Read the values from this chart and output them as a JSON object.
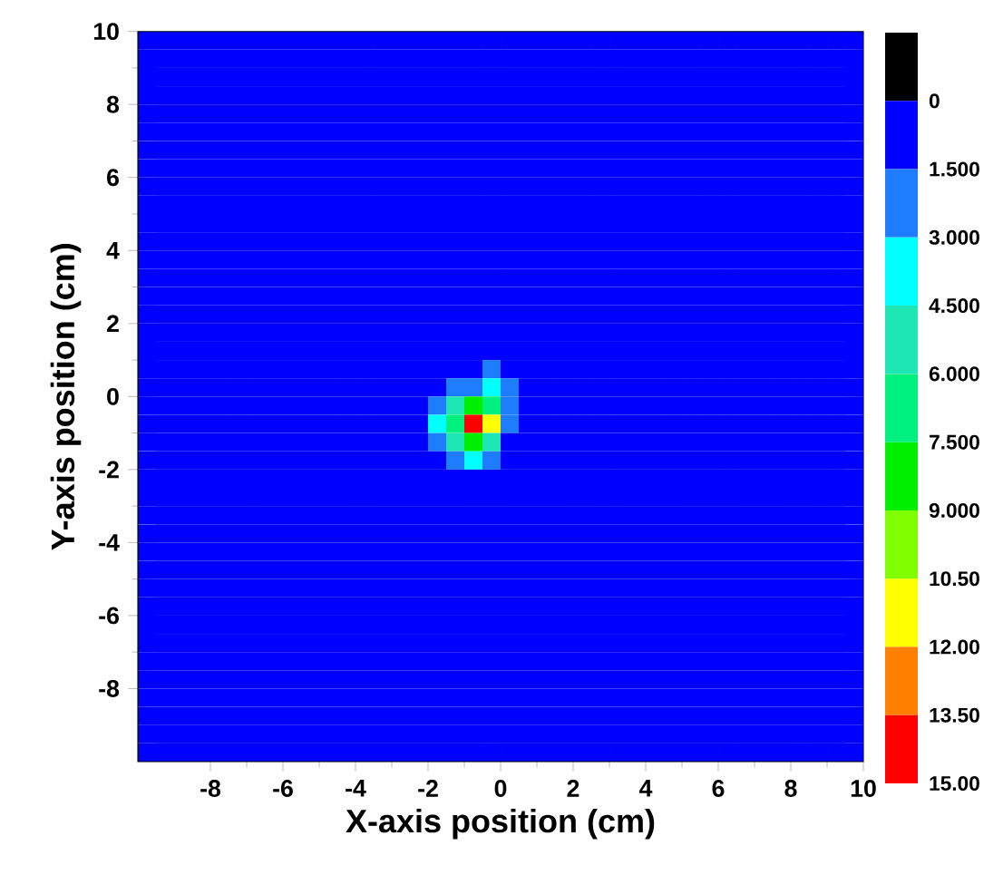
{
  "chart_data": {
    "type": "heatmap",
    "xlabel": "X-axis position (cm)",
    "ylabel": "Y-axis position (cm)",
    "xlim": [
      -10,
      10
    ],
    "ylim": [
      -10,
      10
    ],
    "xticks": [
      -8,
      -6,
      -4,
      -2,
      0,
      2,
      4,
      6,
      8,
      10
    ],
    "yticks": [
      -8,
      -6,
      -4,
      -2,
      0,
      2,
      4,
      6,
      8,
      10
    ],
    "clim": [
      15,
      -1.5
    ],
    "cticks": [
      {
        "value": 0,
        "label": "0"
      },
      {
        "value": 1.5,
        "label": "1.500"
      },
      {
        "value": 3,
        "label": "3.000"
      },
      {
        "value": 4.5,
        "label": "4.500"
      },
      {
        "value": 6,
        "label": "6.000"
      },
      {
        "value": 7.5,
        "label": "7.500"
      },
      {
        "value": 9,
        "label": "9.000"
      },
      {
        "value": 10.5,
        "label": "10.50"
      },
      {
        "value": 12,
        "label": "12.00"
      },
      {
        "value": 13.5,
        "label": "13.50"
      },
      {
        "value": 15,
        "label": "15.00"
      }
    ],
    "colors": [
      "#000000",
      "#0000ff",
      "#1e7cff",
      "#00ffff",
      "#1ee6b4",
      "#00f080",
      "#00f000",
      "#80ff00",
      "#ffff00",
      "#ff8000",
      "#ff0000"
    ],
    "grid": false,
    "cells": [
      [
        0,
        0,
        0,
        0,
        0,
        0,
        0,
        0,
        0,
        0,
        0,
        0,
        0,
        0,
        0,
        0,
        0,
        0,
        0,
        0,
        0,
        0,
        0,
        0,
        0,
        0,
        0,
        0,
        0,
        0,
        0,
        0,
        0,
        0,
        0,
        0,
        0,
        0,
        0,
        0
      ],
      [
        0,
        0,
        0,
        0,
        0,
        0,
        0,
        0,
        0,
        0,
        0,
        0,
        0,
        0,
        0,
        0,
        0,
        0,
        0,
        0,
        0,
        0,
        0,
        0,
        0,
        0,
        0,
        0,
        0,
        0,
        0,
        0,
        0,
        0,
        0,
        0,
        0,
        0,
        0,
        0
      ],
      [
        0,
        0,
        0,
        0,
        0,
        0,
        0,
        0,
        0,
        0,
        0,
        0,
        0,
        0,
        0,
        0,
        0,
        0,
        0,
        0,
        0,
        0,
        0,
        0,
        0,
        0,
        0,
        0,
        0,
        0,
        0,
        0,
        0,
        0,
        0,
        0,
        0,
        0,
        0,
        0
      ],
      [
        0,
        0,
        0,
        0,
        0,
        0,
        0,
        0,
        0,
        0,
        0,
        0,
        0,
        0,
        0,
        0,
        0,
        0,
        0,
        0,
        0,
        0,
        0,
        0,
        0,
        0,
        0,
        0,
        0,
        0,
        0,
        0,
        0,
        0,
        0,
        0,
        0,
        0,
        0,
        0
      ],
      [
        0,
        0,
        0,
        0,
        0,
        0,
        0,
        0,
        0,
        0,
        0,
        0,
        0,
        0,
        0,
        0,
        0,
        0,
        0,
        0,
        0,
        0,
        0,
        0,
        0,
        0,
        0,
        0,
        0,
        0,
        0,
        0,
        0,
        0,
        0,
        0,
        0,
        0,
        0,
        0
      ],
      [
        0,
        0,
        0,
        0,
        0,
        0,
        0,
        0,
        0,
        0,
        0,
        0,
        0,
        0,
        0,
        0,
        0,
        0,
        0,
        0,
        0,
        0,
        0,
        0,
        0,
        0,
        0,
        0,
        0,
        0,
        0,
        0,
        0,
        0,
        0,
        0,
        0,
        0,
        0,
        0
      ],
      [
        0,
        0,
        0,
        0,
        0,
        0,
        0,
        0,
        0,
        0,
        0,
        0,
        0,
        0,
        0,
        0,
        0,
        0,
        0,
        0,
        0,
        0,
        0,
        0,
        0,
        0,
        0,
        0,
        0,
        0,
        0,
        0,
        0,
        0,
        0,
        0,
        0,
        0,
        0,
        0
      ],
      [
        0,
        0,
        0,
        0,
        0,
        0,
        0,
        0,
        0,
        0,
        0,
        0,
        0,
        0,
        0,
        0,
        0,
        0,
        0,
        0,
        0,
        0,
        0,
        0,
        0,
        0,
        0,
        0,
        0,
        0,
        0,
        0,
        0,
        0,
        0,
        0,
        0,
        0,
        0,
        0
      ],
      [
        0,
        0,
        0,
        0,
        0,
        0,
        0,
        0,
        0,
        0,
        0,
        0,
        0,
        0,
        0,
        0,
        0,
        0,
        0,
        0,
        0,
        0,
        0,
        0,
        0,
        0,
        0,
        0,
        0,
        0,
        0,
        0,
        0,
        0,
        0,
        0,
        0,
        0,
        0,
        0
      ],
      [
        0,
        0,
        0,
        0,
        0,
        0,
        0,
        0,
        0,
        0,
        0,
        0,
        0,
        0,
        0,
        0,
        0,
        0,
        0,
        0,
        0,
        0,
        0,
        0,
        0,
        0,
        0,
        0,
        0,
        0,
        0,
        0,
        0,
        0,
        0,
        0,
        0,
        0,
        0,
        0
      ],
      [
        0,
        0,
        0,
        0,
        0,
        0,
        0,
        0,
        0,
        0,
        0,
        0,
        0,
        0,
        0,
        0,
        0,
        0,
        0,
        0,
        0,
        0,
        0,
        0,
        0,
        0,
        0,
        0,
        0,
        0,
        0,
        0,
        0,
        0,
        0,
        0,
        0,
        0,
        0,
        0
      ],
      [
        0,
        0,
        0,
        0,
        0,
        0,
        0,
        0,
        0,
        0,
        0,
        0,
        0,
        0,
        0,
        0,
        0,
        0,
        0,
        0,
        0,
        0,
        0,
        0,
        0,
        0,
        0,
        0,
        0,
        0,
        0,
        0,
        0,
        0,
        0,
        0,
        0,
        0,
        0,
        0
      ],
      [
        0,
        0,
        0,
        0,
        0,
        0,
        0,
        0,
        0,
        0,
        0,
        0,
        0,
        0,
        0,
        0,
        0,
        0,
        0,
        0,
        0,
        0,
        0,
        0,
        0,
        0,
        0,
        0,
        0,
        0,
        0,
        0,
        0,
        0,
        0,
        0,
        0,
        0,
        0,
        0
      ],
      [
        0,
        0,
        0,
        0,
        0,
        0,
        0,
        0,
        0,
        0,
        0,
        0,
        0,
        0,
        0,
        0,
        0,
        0,
        0,
        0,
        0,
        0,
        0,
        0,
        0,
        0,
        0,
        0,
        0,
        0,
        0,
        0,
        0,
        0,
        0,
        0,
        0,
        0,
        0,
        0
      ],
      [
        0,
        0,
        0,
        0,
        0,
        0,
        0,
        0,
        0,
        0,
        0,
        0,
        0,
        0,
        0,
        0,
        0,
        0,
        0,
        0,
        0,
        0,
        0,
        0,
        0,
        0,
        0,
        0,
        0,
        0,
        0,
        0,
        0,
        0,
        0,
        0,
        0,
        0,
        0,
        0
      ],
      [
        0,
        0,
        0,
        0,
        0,
        0,
        0,
        0,
        0,
        0,
        0,
        0,
        0,
        0,
        0,
        0,
        0,
        0,
        0,
        0,
        0,
        0,
        0,
        0,
        0,
        0,
        0,
        0,
        0,
        0,
        0,
        0,
        0,
        0,
        0,
        0,
        0,
        0,
        0,
        0
      ],
      [
        0,
        0,
        0,
        0,
        0,
        0,
        0,
        0,
        0,
        0,
        0,
        0,
        0,
        0,
        0,
        0,
        0,
        0,
        0,
        0,
        0,
        0,
        0,
        0,
        0,
        0,
        0,
        0,
        0,
        0,
        0,
        0,
        0,
        0,
        0,
        0,
        0,
        0,
        0,
        0
      ],
      [
        0,
        0,
        0,
        0,
        0,
        0,
        0,
        0,
        0,
        0,
        0,
        0,
        0,
        0,
        0,
        0,
        0,
        0,
        0,
        0,
        0,
        0,
        0,
        0,
        0,
        0,
        0,
        0,
        0,
        0,
        0,
        0,
        0,
        0,
        0,
        0,
        0,
        0,
        0,
        0
      ],
      [
        0,
        0,
        0,
        0,
        0,
        0,
        0,
        0,
        0,
        0,
        0,
        0,
        0,
        0,
        0,
        0,
        0,
        0,
        0,
        2,
        0,
        0,
        0,
        0,
        0,
        0,
        0,
        0,
        0,
        0,
        0,
        0,
        0,
        0,
        0,
        0,
        0,
        0,
        0,
        0
      ],
      [
        0,
        0,
        0,
        0,
        0,
        0,
        0,
        0,
        0,
        0,
        0,
        0,
        0,
        0,
        0,
        0,
        0,
        2,
        2,
        3,
        2,
        0,
        0,
        0,
        0,
        0,
        0,
        0,
        0,
        0,
        0,
        0,
        0,
        0,
        0,
        0,
        0,
        0,
        0,
        0
      ],
      [
        0,
        0,
        0,
        0,
        0,
        0,
        0,
        0,
        0,
        0,
        0,
        0,
        0,
        0,
        0,
        0,
        2,
        5,
        8,
        6,
        2,
        0,
        0,
        0,
        0,
        0,
        0,
        0,
        0,
        0,
        0,
        0,
        0,
        0,
        0,
        0,
        0,
        0,
        0,
        0
      ],
      [
        0,
        0,
        0,
        0,
        0,
        0,
        0,
        0,
        0,
        0,
        0,
        0,
        0,
        0,
        0,
        0,
        3,
        7,
        14,
        11,
        2,
        0,
        0,
        0,
        0,
        0,
        0,
        0,
        0,
        0,
        0,
        0,
        0,
        0,
        0,
        0,
        0,
        0,
        0,
        0
      ],
      [
        0,
        0,
        0,
        0,
        0,
        0,
        0,
        0,
        0,
        0,
        0,
        0,
        0,
        0,
        0,
        0,
        2,
        5,
        8,
        5,
        0,
        0,
        0,
        0,
        0,
        0,
        0,
        0,
        0,
        0,
        0,
        0,
        0,
        0,
        0,
        0,
        0,
        0,
        0,
        0
      ],
      [
        0,
        0,
        0,
        0,
        0,
        0,
        0,
        0,
        0,
        0,
        0,
        0,
        0,
        0,
        0,
        0,
        0,
        2,
        3,
        2,
        0,
        0,
        0,
        0,
        0,
        0,
        0,
        0,
        0,
        0,
        0,
        0,
        0,
        0,
        0,
        0,
        0,
        0,
        0,
        0
      ],
      [
        0,
        0,
        0,
        0,
        0,
        0,
        0,
        0,
        0,
        0,
        0,
        0,
        0,
        0,
        0,
        0,
        0,
        0,
        0,
        0,
        0,
        0,
        0,
        0,
        0,
        0,
        0,
        0,
        0,
        0,
        0,
        0,
        0,
        0,
        0,
        0,
        0,
        0,
        0,
        0
      ],
      [
        0,
        0,
        0,
        0,
        0,
        0,
        0,
        0,
        0,
        0,
        0,
        0,
        0,
        0,
        0,
        0,
        0,
        0,
        0,
        0,
        0,
        0,
        0,
        0,
        0,
        0,
        0,
        0,
        0,
        0,
        0,
        0,
        0,
        0,
        0,
        0,
        0,
        0,
        0,
        0
      ],
      [
        0,
        0,
        0,
        0,
        0,
        0,
        0,
        0,
        0,
        0,
        0,
        0,
        0,
        0,
        0,
        0,
        0,
        0,
        0,
        0,
        0,
        0,
        0,
        0,
        0,
        0,
        0,
        0,
        0,
        0,
        0,
        0,
        0,
        0,
        0,
        0,
        0,
        0,
        0,
        0
      ],
      [
        0,
        0,
        0,
        0,
        0,
        0,
        0,
        0,
        0,
        0,
        0,
        0,
        0,
        0,
        0,
        0,
        0,
        0,
        0,
        0,
        0,
        0,
        0,
        0,
        0,
        0,
        0,
        0,
        0,
        0,
        0,
        0,
        0,
        0,
        0,
        0,
        0,
        0,
        0,
        0
      ],
      [
        0,
        0,
        0,
        0,
        0,
        0,
        0,
        0,
        0,
        0,
        0,
        0,
        0,
        0,
        0,
        0,
        0,
        0,
        0,
        0,
        0,
        0,
        0,
        0,
        0,
        0,
        0,
        0,
        0,
        0,
        0,
        0,
        0,
        0,
        0,
        0,
        0,
        0,
        0,
        0
      ],
      [
        0,
        0,
        0,
        0,
        0,
        0,
        0,
        0,
        0,
        0,
        0,
        0,
        0,
        0,
        0,
        0,
        0,
        0,
        0,
        0,
        0,
        0,
        0,
        0,
        0,
        0,
        0,
        0,
        0,
        0,
        0,
        0,
        0,
        0,
        0,
        0,
        0,
        0,
        0,
        0
      ],
      [
        0,
        0,
        0,
        0,
        0,
        0,
        0,
        0,
        0,
        0,
        0,
        0,
        0,
        0,
        0,
        0,
        0,
        0,
        0,
        0,
        0,
        0,
        0,
        0,
        0,
        0,
        0,
        0,
        0,
        0,
        0,
        0,
        0,
        0,
        0,
        0,
        0,
        0,
        0,
        0
      ],
      [
        0,
        0,
        0,
        0,
        0,
        0,
        0,
        0,
        0,
        0,
        0,
        0,
        0,
        0,
        0,
        0,
        0,
        0,
        0,
        0,
        0,
        0,
        0,
        0,
        0,
        0,
        0,
        0,
        0,
        0,
        0,
        0,
        0,
        0,
        0,
        0,
        0,
        0,
        0,
        0
      ],
      [
        0,
        0,
        0,
        0,
        0,
        0,
        0,
        0,
        0,
        0,
        0,
        0,
        0,
        0,
        0,
        0,
        0,
        0,
        0,
        0,
        0,
        0,
        0,
        0,
        0,
        0,
        0,
        0,
        0,
        0,
        0,
        0,
        0,
        0,
        0,
        0,
        0,
        0,
        0,
        0
      ],
      [
        0,
        0,
        0,
        0,
        0,
        0,
        0,
        0,
        0,
        0,
        0,
        0,
        0,
        0,
        0,
        0,
        0,
        0,
        0,
        0,
        0,
        0,
        0,
        0,
        0,
        0,
        0,
        0,
        0,
        0,
        0,
        0,
        0,
        0,
        0,
        0,
        0,
        0,
        0,
        0
      ],
      [
        0,
        0,
        0,
        0,
        0,
        0,
        0,
        0,
        0,
        0,
        0,
        0,
        0,
        0,
        0,
        0,
        0,
        0,
        0,
        0,
        0,
        0,
        0,
        0,
        0,
        0,
        0,
        0,
        0,
        0,
        0,
        0,
        0,
        0,
        0,
        0,
        0,
        0,
        0,
        0
      ],
      [
        0,
        0,
        0,
        0,
        0,
        0,
        0,
        0,
        0,
        0,
        0,
        0,
        0,
        0,
        0,
        0,
        0,
        0,
        0,
        0,
        0,
        0,
        0,
        0,
        0,
        0,
        0,
        0,
        0,
        0,
        0,
        0,
        0,
        0,
        0,
        0,
        0,
        0,
        0,
        0
      ],
      [
        0,
        0,
        0,
        0,
        0,
        0,
        0,
        0,
        0,
        0,
        0,
        0,
        0,
        0,
        0,
        0,
        0,
        0,
        0,
        0,
        0,
        0,
        0,
        0,
        0,
        0,
        0,
        0,
        0,
        0,
        0,
        0,
        0,
        0,
        0,
        0,
        0,
        0,
        0,
        0
      ],
      [
        0,
        0,
        0,
        0,
        0,
        0,
        0,
        0,
        0,
        0,
        0,
        0,
        0,
        0,
        0,
        0,
        0,
        0,
        0,
        0,
        0,
        0,
        0,
        0,
        0,
        0,
        0,
        0,
        0,
        0,
        0,
        0,
        0,
        0,
        0,
        0,
        0,
        0,
        0,
        0
      ],
      [
        0,
        0,
        0,
        0,
        0,
        0,
        0,
        0,
        0,
        0,
        0,
        0,
        0,
        0,
        0,
        0,
        0,
        0,
        0,
        0,
        0,
        0,
        0,
        0,
        0,
        0,
        0,
        0,
        0,
        0,
        0,
        0,
        0,
        0,
        0,
        0,
        0,
        0,
        0,
        0
      ],
      [
        0,
        0,
        0,
        0,
        0,
        0,
        0,
        0,
        0,
        0,
        0,
        0,
        0,
        0,
        0,
        0,
        0,
        0,
        0,
        0,
        0,
        0,
        0,
        0,
        0,
        0,
        0,
        0,
        0,
        0,
        0,
        0,
        0,
        0,
        0,
        0,
        0,
        0,
        0,
        0
      ]
    ]
  }
}
